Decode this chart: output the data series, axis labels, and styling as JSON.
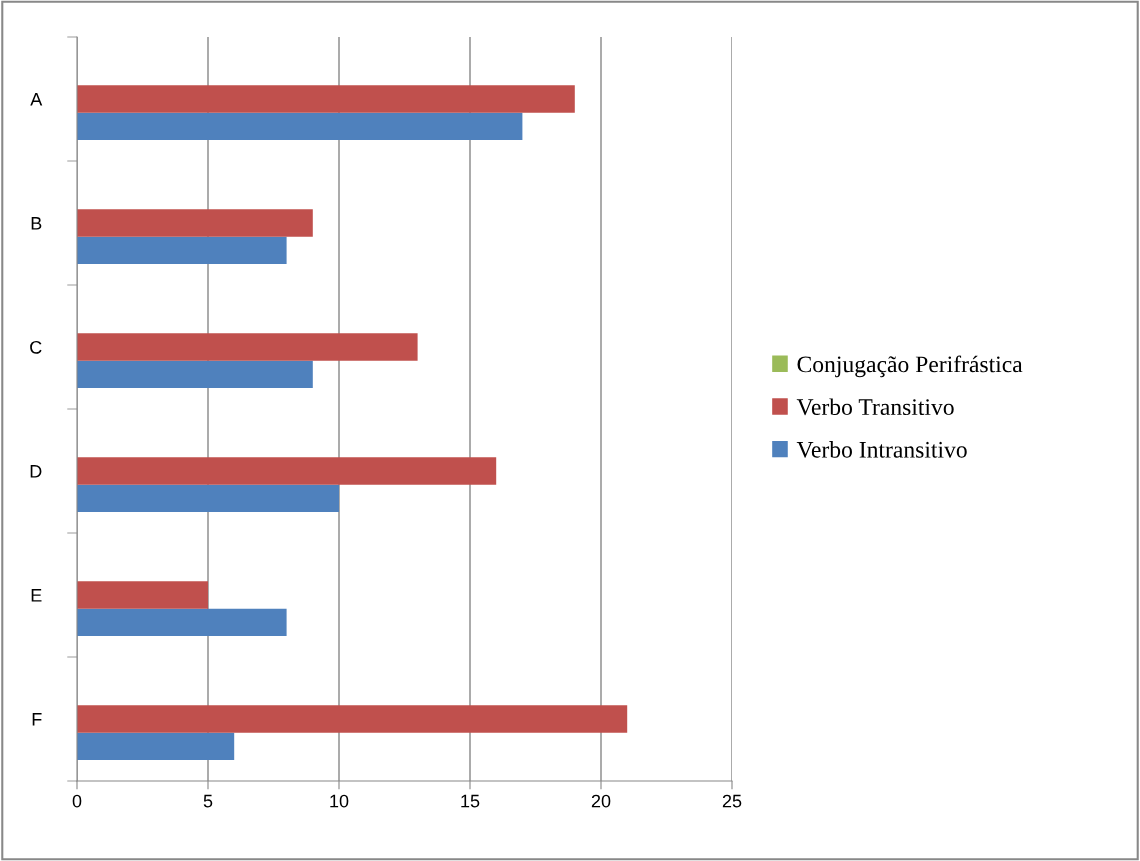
{
  "chart_data": {
    "type": "bar",
    "orientation": "horizontal",
    "categories": [
      "A",
      "B",
      "C",
      "D",
      "E",
      "F"
    ],
    "series": [
      {
        "name": "Verbo Intransitivo",
        "color": "#4f81bd",
        "values": [
          17,
          8,
          9,
          10,
          8,
          6
        ]
      },
      {
        "name": "Verbo Transitivo",
        "color": "#c0504d",
        "values": [
          19,
          9,
          13,
          16,
          5,
          21
        ]
      },
      {
        "name": "Conjugação Perifrástica",
        "color": "#9bbb59",
        "values": [
          0,
          0,
          0,
          0,
          0,
          0
        ]
      }
    ],
    "xlim": [
      0,
      25
    ],
    "xticks": [
      0,
      5,
      10,
      15,
      20,
      25
    ],
    "grid": "x",
    "legend": "right"
  }
}
